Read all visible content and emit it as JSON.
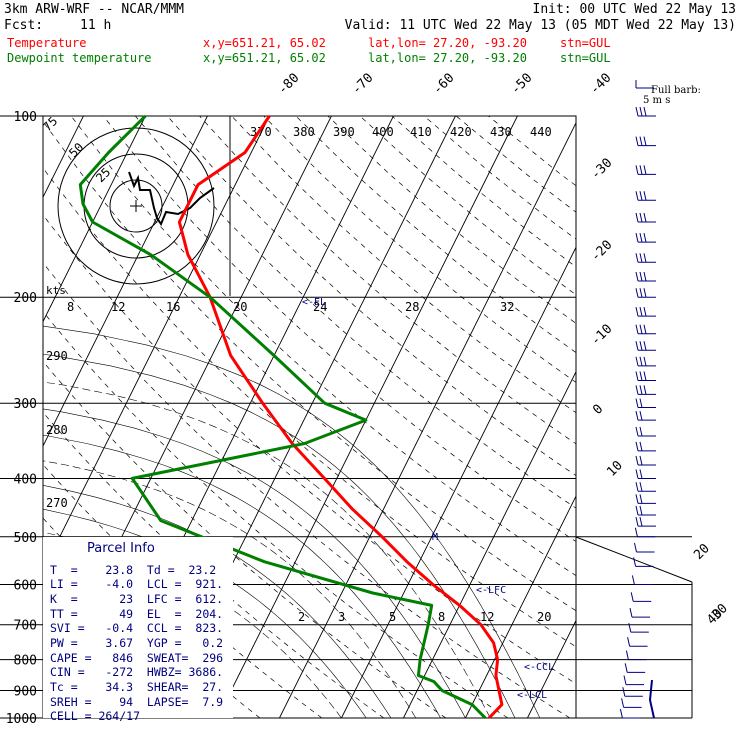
{
  "header": {
    "model": "3km ARW-WRF -- NCAR/MMM",
    "init": "Init: 00 UTC Wed 22 May 13",
    "fcst_label": "Fcst:",
    "fcst_value": "11 h",
    "valid": "Valid: 11 UTC Wed 22 May 13 (05 MDT Wed 22 May 13)"
  },
  "legend": {
    "temperature": {
      "label": "Temperature",
      "coords": "x,y=651.21, 65.02",
      "latlon": "lat,lon= 27.20, -93.20",
      "stn": "stn=GUL",
      "color": "#ff0000"
    },
    "dewpoint": {
      "label": "Dewpoint temperature",
      "coords": "x,y=651.21, 65.02",
      "latlon": "lat,lon= 27.20, -93.20",
      "stn": "stn=GUL",
      "color": "#008000"
    }
  },
  "barb_key": {
    "line1": "Full barb:",
    "line2": "5 m s"
  },
  "parcel_info": {
    "title": "Parcel Info",
    "rows": [
      "T  =    23.8  Td =  23.2",
      "LI =    -4.0  LCL =  921.",
      "K  =      23  LFC =  612.",
      "TT =      49  EL  =  204.",
      "SVI =   -0.4  CCL =  823.",
      "PW =    3.67  YGP =   0.2",
      "CAPE =   846  SWEAT=  296",
      "CIN =   -272  HWBZ= 3686.",
      "Tc =    34.3  SHEAR=  27.",
      "SREH =    94  LAPSE=  7.9",
      "CELL = 264/17"
    ]
  },
  "hodograph": {
    "unit_label": "kts",
    "ring_labels": [
      "75",
      "50",
      "25"
    ]
  },
  "level_markers": {
    "lfc": "<-LFC",
    "ccl": "<-CCL",
    "lcl": "<-LCL",
    "el": "<-EL",
    "m": "M"
  },
  "colors": {
    "temperature": "#ff0000",
    "dewpoint": "#008000",
    "hodograph": "#000000",
    "barbs": "#000080",
    "isotherm": "#000000",
    "grid": "#000000"
  },
  "chart_data": {
    "type": "line",
    "title": "",
    "xlabel": "",
    "ylabel": "",
    "pressure_levels": [
      100,
      200,
      300,
      400,
      500,
      600,
      700,
      800,
      900,
      1000
    ],
    "y_tick_labels": [
      "100",
      "200",
      "300",
      "400",
      "500",
      "600",
      "700",
      "800",
      "900",
      "1000"
    ],
    "skewed_temperature_labels": [
      "-80",
      "-70",
      "-60",
      "-50",
      "-40",
      "-30",
      "-20",
      "-10",
      "0",
      "10",
      "20",
      "30",
      "40"
    ],
    "theta_labels": [
      "370",
      "380",
      "390",
      "400",
      "410",
      "420",
      "430",
      "440"
    ],
    "theta_side_labels": [
      "290",
      "280",
      "270"
    ],
    "mixing_ratio_labels_top": [
      "8",
      "12",
      "16",
      "20",
      "24",
      "28",
      "32"
    ],
    "mixing_ratio_labels_bottom": [
      "2",
      "3",
      "5",
      "8",
      "12",
      "20"
    ],
    "series": [
      {
        "name": "Temperature",
        "color": "#ff0000",
        "x": [
          23.8,
          24.8,
          23.2,
          21.5,
          20.5,
          18.5,
          15,
          10,
          4,
          -2,
          -8,
          -15,
          -22,
          -30,
          -38,
          -47,
          -55,
          -62,
          -66,
          -66,
          -61,
          -60
        ],
        "y": [
          1000,
          950,
          900,
          850,
          800,
          750,
          700,
          650,
          600,
          550,
          500,
          450,
          400,
          350,
          300,
          250,
          200,
          170,
          150,
          130,
          115,
          100
        ]
      },
      {
        "name": "Dewpoint temperature",
        "color": "#008000",
        "x": [
          23.2,
          20,
          14,
          12,
          9,
          8,
          6.5,
          5.5,
          -5,
          -25,
          -45,
          -53,
          -28,
          -20,
          -28,
          -40,
          -55,
          -68,
          -80,
          -83,
          -85,
          -83,
          -80
        ],
        "y": [
          1000,
          950,
          900,
          870,
          850,
          800,
          700,
          650,
          620,
          550,
          470,
          400,
          350,
          320,
          300,
          250,
          200,
          170,
          150,
          140,
          130,
          115,
          100
        ]
      }
    ],
    "wind_barb_pressures": [
      100,
      112,
      125,
      138,
      150,
      162,
      175,
      188,
      200,
      215,
      230,
      245,
      260,
      275,
      290,
      305,
      320,
      340,
      360,
      380,
      400,
      420,
      440,
      460,
      480,
      500,
      530,
      560,
      600,
      640,
      680,
      720,
      760,
      800,
      840,
      880,
      920,
      960,
      1000
    ],
    "grid": true
  }
}
